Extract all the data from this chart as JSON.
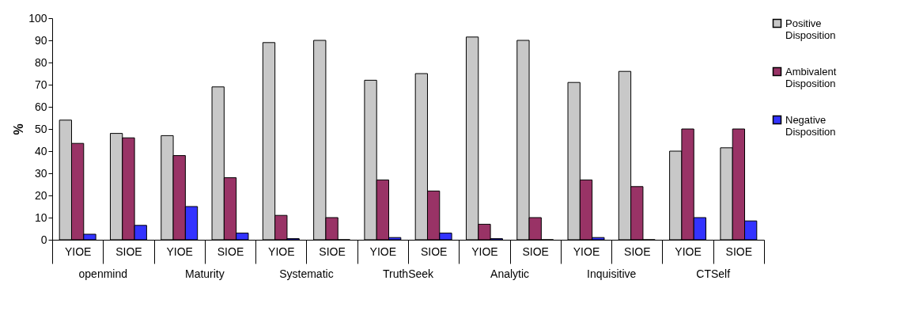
{
  "chart_data": {
    "type": "bar",
    "ylabel": "%",
    "categories": [
      "YIOE",
      "SIOE",
      "YIOE",
      "SIOE",
      "YIOE",
      "SIOE",
      "YIOE",
      "SIOE",
      "YIOE",
      "SIOE",
      "YIOE",
      "SIOE",
      "YIOE",
      "SIOE"
    ],
    "annotations": [
      "openmind",
      "Maturity",
      "Systematic",
      "TruthSeek",
      "Analytic",
      "Inquisitive",
      "CTSelf"
    ],
    "series": [
      {
        "name": "Positive Disposition",
        "color": "#c8c8c8",
        "values": [
          54,
          48,
          47,
          69,
          89,
          90,
          72,
          75,
          91.5,
          90,
          71,
          76,
          40,
          41.5
        ]
      },
      {
        "name": "Ambivalent Disposition",
        "color": "#993366",
        "values": [
          43.5,
          46,
          38,
          28,
          11,
          10,
          27,
          22,
          7,
          10,
          27,
          24,
          50,
          50
        ]
      },
      {
        "name": "Negative Disposition",
        "color": "#3333ff",
        "values": [
          2.5,
          6.5,
          15,
          3,
          0.5,
          0,
          1,
          3,
          0.5,
          0,
          1,
          0,
          10,
          8.5
        ]
      }
    ],
    "ylim": [
      0,
      100
    ],
    "yticks": [
      0,
      10,
      20,
      30,
      40,
      50,
      60,
      70,
      80,
      90,
      100
    ],
    "legend": "top right"
  }
}
